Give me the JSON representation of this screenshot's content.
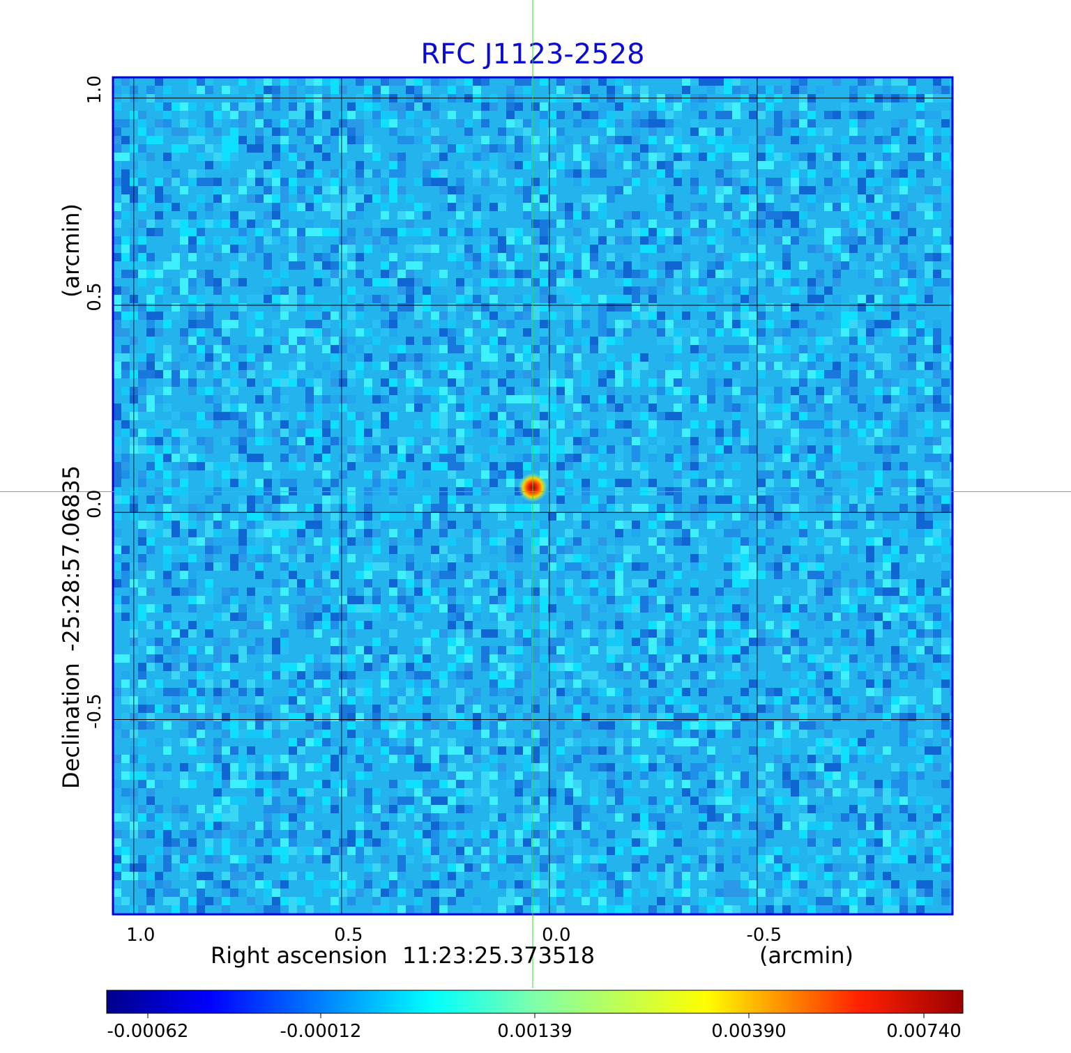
{
  "title": "RFC J1123-2528",
  "axes": {
    "xlabel_prefix": "Right ascension",
    "xlabel_value": "11:23:25.373518",
    "xunit": "(arcmin)",
    "ylabel_prefix": "Declination",
    "ylabel_value": "-25:28:57.06835",
    "yunit": "(arcmin)"
  },
  "chart_data": {
    "type": "heatmap",
    "title": "RFC J1123-2528",
    "x_ticks": [
      {
        "value": 1.0,
        "label": "1.0"
      },
      {
        "value": 0.5,
        "label": "0.5"
      },
      {
        "value": 0.0,
        "label": "0.0"
      },
      {
        "value": -0.5,
        "label": "-0.5"
      }
    ],
    "y_ticks": [
      {
        "value": 1.0,
        "label": "1.0"
      },
      {
        "value": 0.5,
        "label": "0.5"
      },
      {
        "value": 0.0,
        "label": "0.0"
      },
      {
        "value": -0.5,
        "label": "-0.5"
      }
    ],
    "xlim": [
      1.05,
      -0.97
    ],
    "ylim": [
      -0.97,
      1.05
    ],
    "grid": true,
    "crosshair": {
      "x": 0.04,
      "y": 0.05
    },
    "source": {
      "x": 0.04,
      "y": 0.06,
      "peak": 0.0074
    },
    "colorbar": {
      "ticks": [
        "-0.00062",
        "-0.00012",
        "0.00139",
        "0.00390",
        "0.00740"
      ],
      "colors": [
        "#00008b",
        "#0000ff",
        "#00ffff",
        "#ffff00",
        "#ff0000",
        "#8b0000"
      ]
    }
  }
}
